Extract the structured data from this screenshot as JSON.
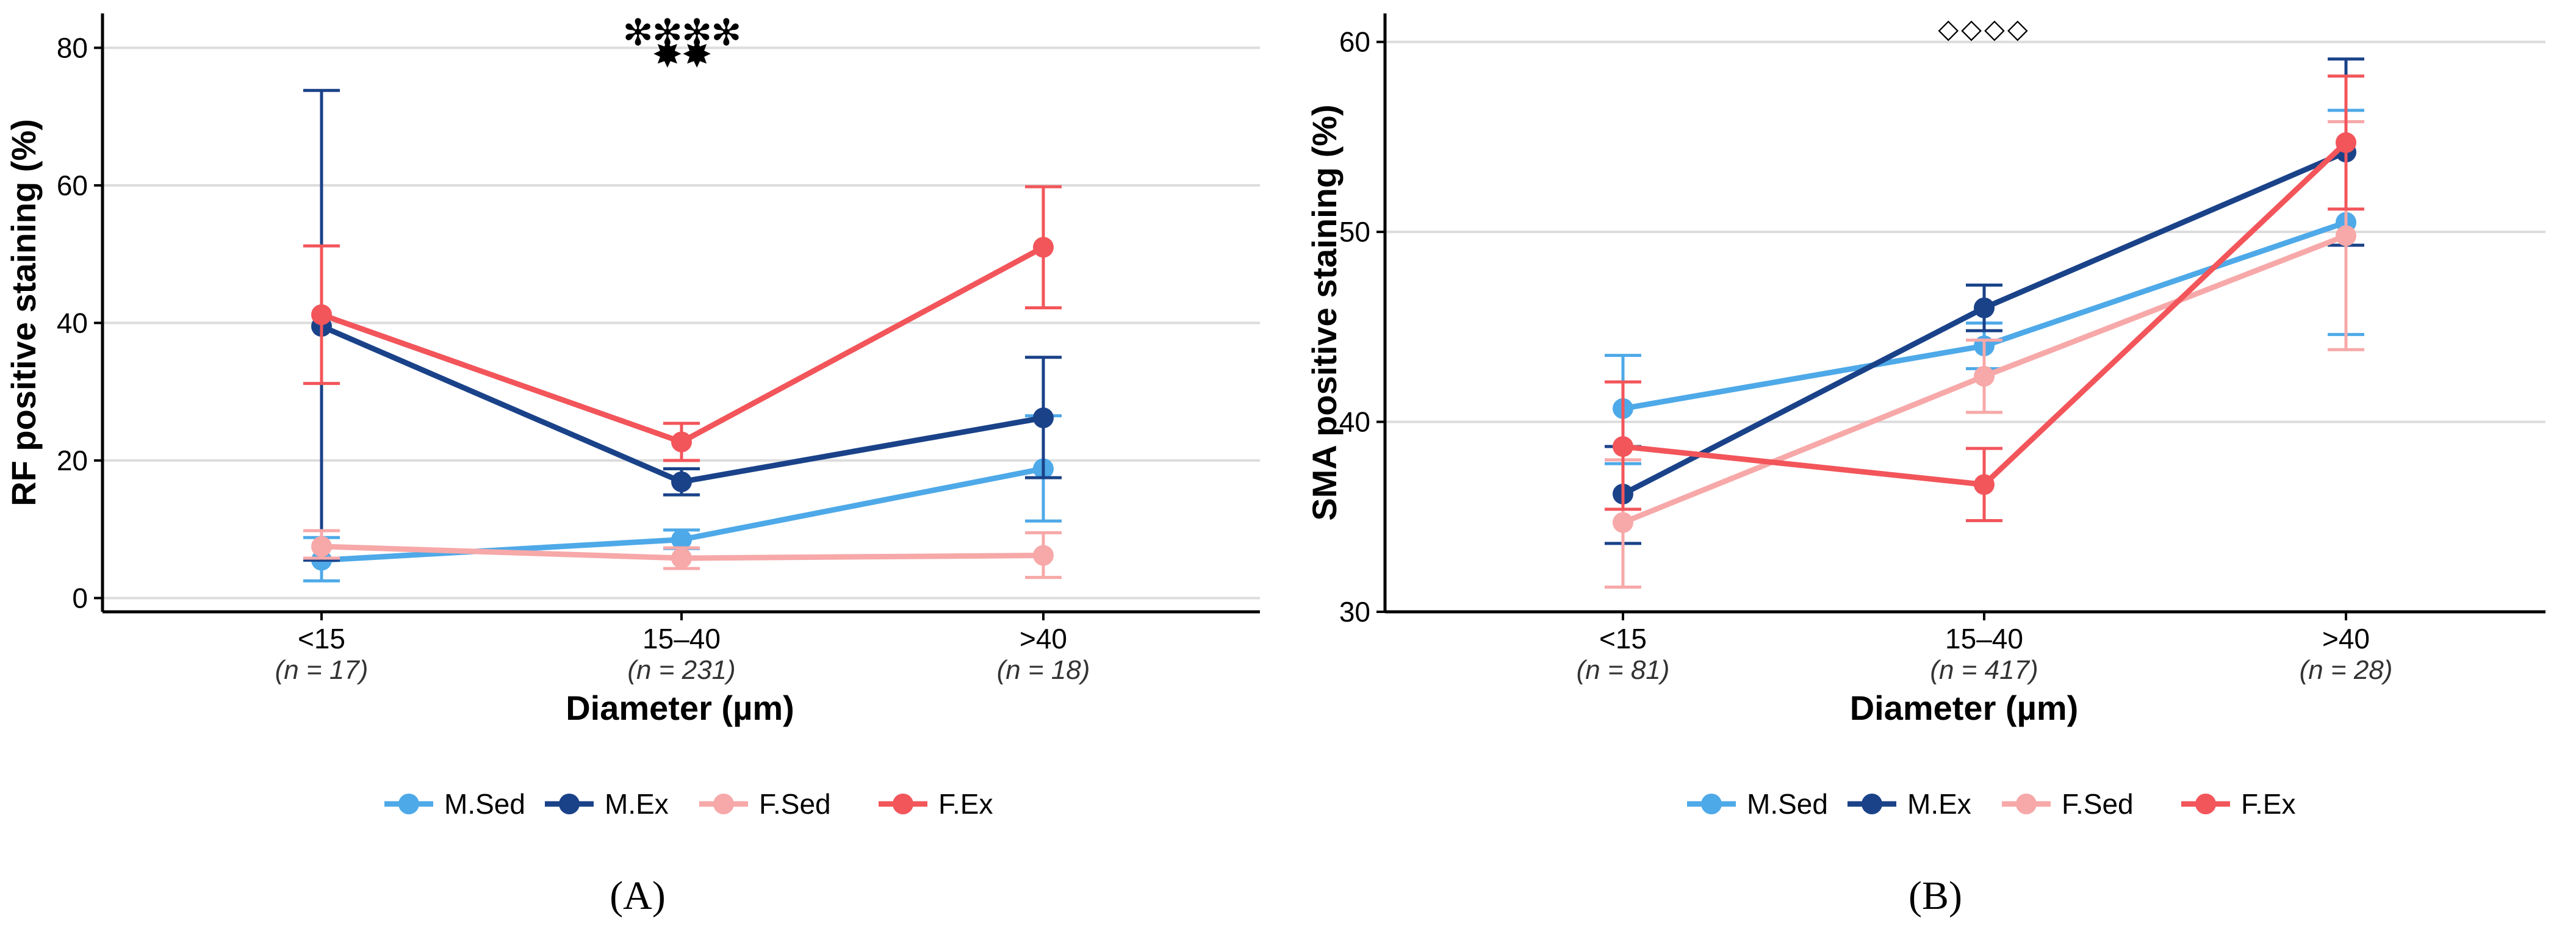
{
  "chart_data": [
    {
      "type": "line",
      "panel_label": "(A)",
      "ylabel": "RF positive staining (%)",
      "xlabel": "Diameter (µm)",
      "categories": [
        "<15",
        "15–40",
        ">40"
      ],
      "category_n": [
        "(n = 17)",
        "(n = 231)",
        "(n = 18)"
      ],
      "ylim": [
        -2,
        85
      ],
      "yticks": [
        0,
        20,
        40,
        60,
        80
      ],
      "grid": "horizontal",
      "significance": [
        {
          "category_index": 1,
          "row": 1,
          "text": "✻✻✻✻",
          "color": "#000000"
        },
        {
          "category_index": 1,
          "row": 2,
          "text": "✸✸",
          "color": "#000000"
        }
      ],
      "series": [
        {
          "name": "M.Sed",
          "color": "#4EA9E8",
          "values": [
            5.5,
            8.5,
            18.8
          ],
          "err_low": [
            2.5,
            7.2,
            11.2
          ],
          "err_high": [
            8.8,
            9.9,
            26.5
          ]
        },
        {
          "name": "M.Ex",
          "color": "#1A4289",
          "values": [
            39.5,
            16.9,
            26.2
          ],
          "err_low": [
            5.5,
            15.0,
            17.5
          ],
          "err_high": [
            73.8,
            18.8,
            35.0
          ]
        },
        {
          "name": "F.Sed",
          "color": "#F7A8A8",
          "values": [
            7.5,
            5.8,
            6.2
          ],
          "err_low": [
            5.8,
            4.3,
            3.0
          ],
          "err_high": [
            9.8,
            7.3,
            9.5
          ]
        },
        {
          "name": "F.Ex",
          "color": "#F2555A",
          "values": [
            41.2,
            22.7,
            51.0
          ],
          "err_low": [
            31.2,
            20.0,
            42.2
          ],
          "err_high": [
            51.2,
            25.4,
            59.8
          ]
        }
      ]
    },
    {
      "type": "line",
      "panel_label": "(B)",
      "ylabel": "SMA positive staining (%)",
      "xlabel": "Diameter (µm)",
      "categories": [
        "<15",
        "15–40",
        ">40"
      ],
      "category_n": [
        "(n = 81)",
        "(n = 417)",
        "(n = 28)"
      ],
      "ylim": [
        30,
        61.5
      ],
      "yticks": [
        30,
        40,
        50,
        60
      ],
      "grid": "horizontal",
      "significance": [
        {
          "category_index": 1,
          "row": 1,
          "text": "◇◇◇◇",
          "color": "#000000"
        }
      ],
      "series": [
        {
          "name": "M.Sed",
          "color": "#4EA9E8",
          "values": [
            40.7,
            44.0,
            50.5
          ],
          "err_low": [
            37.8,
            42.8,
            44.6
          ],
          "err_high": [
            43.5,
            45.2,
            56.4
          ]
        },
        {
          "name": "M.Ex",
          "color": "#1A4289",
          "values": [
            36.2,
            46.0,
            54.2
          ],
          "err_low": [
            33.6,
            44.8,
            49.3
          ],
          "err_high": [
            38.7,
            47.2,
            59.1
          ]
        },
        {
          "name": "F.Sed",
          "color": "#F7A8A8",
          "values": [
            34.7,
            42.4,
            49.8
          ],
          "err_low": [
            31.3,
            40.5,
            43.8
          ],
          "err_high": [
            38.0,
            44.3,
            55.8
          ]
        },
        {
          "name": "F.Ex",
          "color": "#F2555A",
          "values": [
            38.7,
            36.7,
            54.7
          ],
          "err_low": [
            35.4,
            34.8,
            51.2
          ],
          "err_high": [
            42.1,
            38.6,
            58.2
          ]
        }
      ]
    }
  ]
}
